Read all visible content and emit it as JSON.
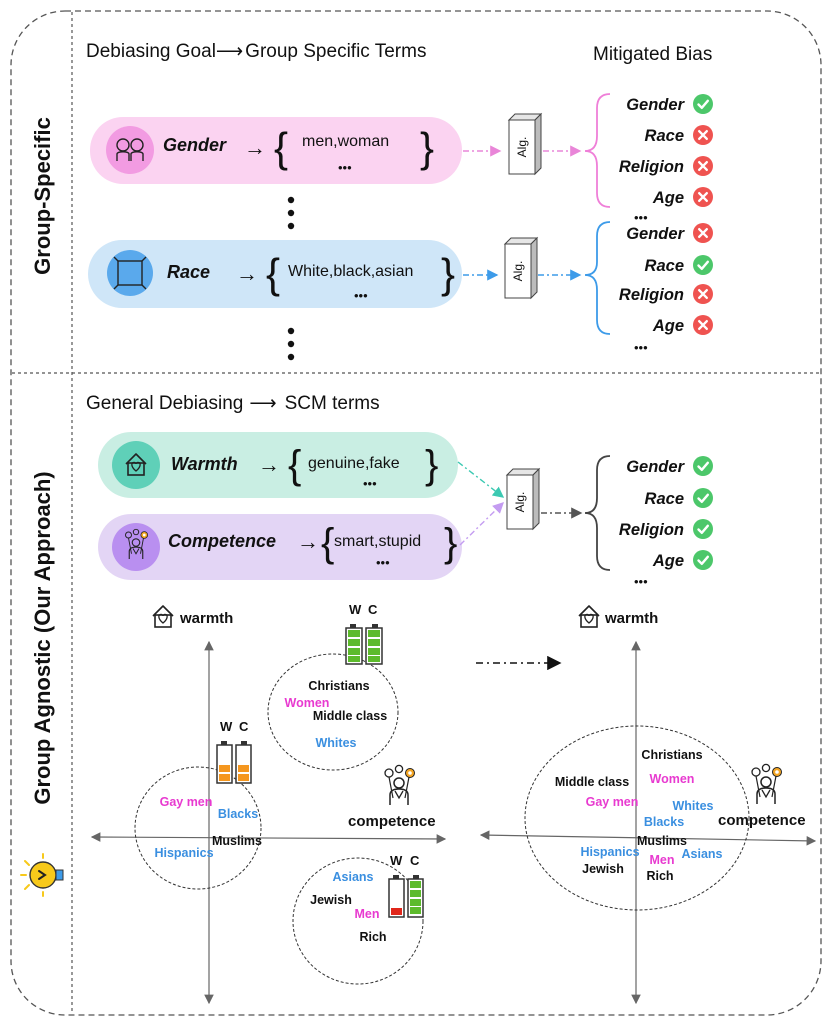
{
  "sections": {
    "group_specific": "Group-Specific",
    "group_agnostic": "Group Agnostic (Our Approach)"
  },
  "top": {
    "heading": "Debiasing Goal",
    "heading_arrow": "⟶",
    "heading_tail": "Group Specific Terms",
    "mitigated_heading": "Mitigated Bias",
    "pills": [
      {
        "label": "Gender",
        "arrow": "→",
        "terms": "men,woman",
        "more": "•••",
        "color": "#fbd3f1"
      },
      {
        "label": "Race",
        "arrow": "→",
        "terms": "White,black,asian",
        "more": "•••",
        "color": "#cfe6f8"
      }
    ],
    "alg": "Alg.",
    "results": [
      [
        {
          "label": "Gender",
          "status": "check"
        },
        {
          "label": "Race",
          "status": "cross"
        },
        {
          "label": "Religion",
          "status": "cross"
        },
        {
          "label": "Age",
          "status": "cross"
        }
      ],
      [
        {
          "label": "Gender",
          "status": "cross"
        },
        {
          "label": "Race",
          "status": "check"
        },
        {
          "label": "Religion",
          "status": "cross"
        },
        {
          "label": "Age",
          "status": "cross"
        }
      ]
    ],
    "more": "•••"
  },
  "bottom": {
    "heading": "General Debiasing",
    "heading_arrow": "⟶",
    "heading_tail": "SCM terms",
    "pills": [
      {
        "label": "Warmth",
        "arrow": "→",
        "terms": "genuine,fake",
        "more": "•••",
        "color": "#c9eee3"
      },
      {
        "label": "Competence",
        "arrow": "→",
        "terms": "smart,stupid",
        "more": "•••",
        "color": "#e3d5f5"
      }
    ],
    "alg": "Alg.",
    "results": [
      {
        "label": "Gender",
        "status": "check"
      },
      {
        "label": "Race",
        "status": "check"
      },
      {
        "label": "Religion",
        "status": "check"
      },
      {
        "label": "Age",
        "status": "check"
      }
    ],
    "more": "•••"
  },
  "plots": {
    "warmth_label": "warmth",
    "competence_label": "competence",
    "battery_w": "W",
    "battery_c": "C",
    "left_groups": {
      "top": [
        {
          "text": "Christians",
          "color": "#111111"
        },
        {
          "text": "Women",
          "color": "#e83ad0"
        },
        {
          "text": "Middle class",
          "color": "#111111"
        },
        {
          "text": "Whites",
          "color": "#3a8fe0"
        }
      ],
      "left": [
        {
          "text": "Gay men",
          "color": "#e83ad0"
        },
        {
          "text": "Blacks",
          "color": "#3a8fe0"
        },
        {
          "text": "Muslims",
          "color": "#111111"
        },
        {
          "text": "Hispanics",
          "color": "#3a8fe0"
        }
      ],
      "bottom": [
        {
          "text": "Asians",
          "color": "#3a8fe0"
        },
        {
          "text": "Jewish",
          "color": "#111111"
        },
        {
          "text": "Men",
          "color": "#e83ad0"
        },
        {
          "text": "Rich",
          "color": "#111111"
        }
      ]
    },
    "right_groups": [
      {
        "text": "Christians",
        "color": "#111111"
      },
      {
        "text": "Middle class",
        "color": "#111111"
      },
      {
        "text": "Women",
        "color": "#e83ad0"
      },
      {
        "text": "Gay men",
        "color": "#e83ad0"
      },
      {
        "text": "Whites",
        "color": "#3a8fe0"
      },
      {
        "text": "Blacks",
        "color": "#3a8fe0"
      },
      {
        "text": "Muslims",
        "color": "#111111"
      },
      {
        "text": "Hispanics",
        "color": "#3a8fe0"
      },
      {
        "text": "Men",
        "color": "#e83ad0"
      },
      {
        "text": "Asians",
        "color": "#3a8fe0"
      },
      {
        "text": "Jewish",
        "color": "#111111"
      },
      {
        "text": "Rich",
        "color": "#111111"
      }
    ]
  },
  "colors": {
    "check": "#4cc76a",
    "cross": "#ef5350",
    "pink_arrow": "#e985d8",
    "blue_arrow": "#3d9be9",
    "teal_arrow": "#3cc9b2",
    "purple_arrow": "#c49cf1"
  }
}
